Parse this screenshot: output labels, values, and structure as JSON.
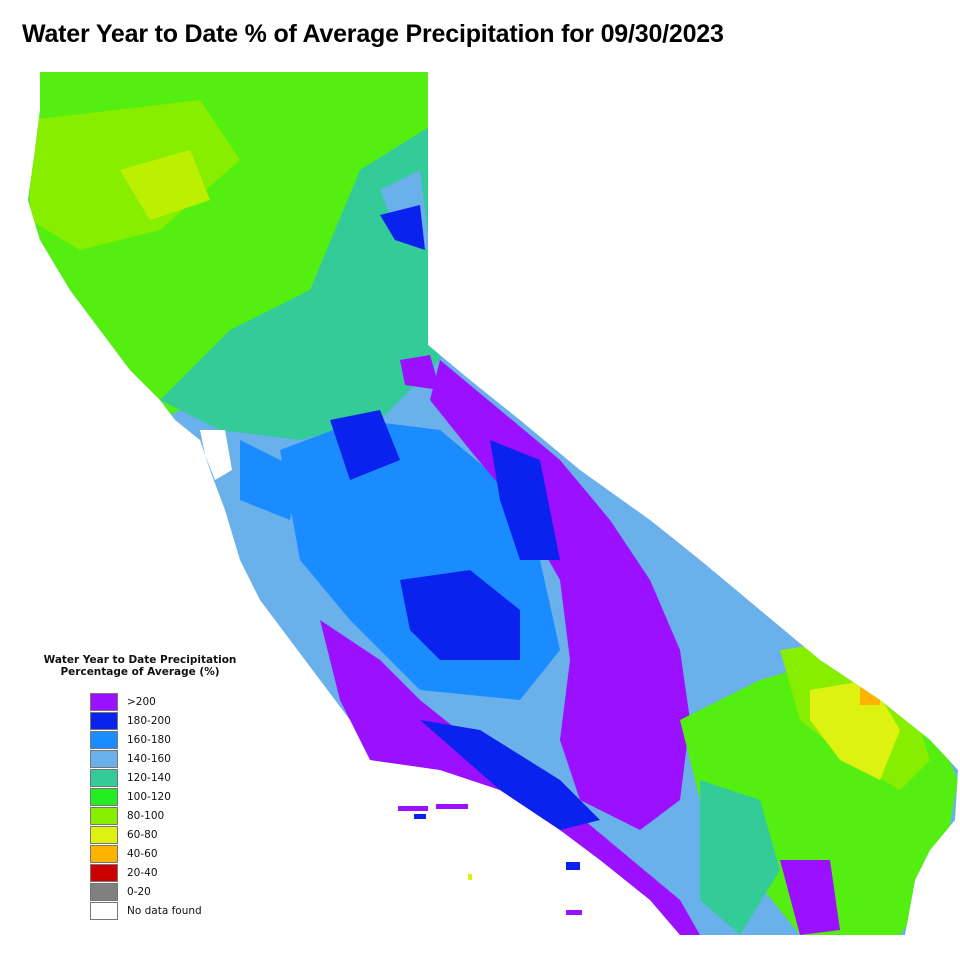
{
  "title": "Water Year to Date % of Average Precipitation for 09/30/2023",
  "legend": {
    "title_line1": "Water Year to Date Precipitation",
    "title_line2": "Percentage of Average (%)",
    "items": [
      {
        "label": ">200",
        "color": "#9a10ff"
      },
      {
        "label": "180-200",
        "color": "#0a22ee"
      },
      {
        "label": "160-180",
        "color": "#1a8cff"
      },
      {
        "label": "140-160",
        "color": "#6ab0ea"
      },
      {
        "label": "120-140",
        "color": "#33cc99"
      },
      {
        "label": "100-120",
        "color": "#22ee22"
      },
      {
        "label": "80-100",
        "color": "#88ee00"
      },
      {
        "label": "60-80",
        "color": "#ddf211"
      },
      {
        "label": "40-60",
        "color": "#ffb300"
      },
      {
        "label": "20-40",
        "color": "#cc0000"
      },
      {
        "label": "0-20",
        "color": "#808080"
      },
      {
        "label": "No data found",
        "color": "#ffffff"
      }
    ]
  }
}
